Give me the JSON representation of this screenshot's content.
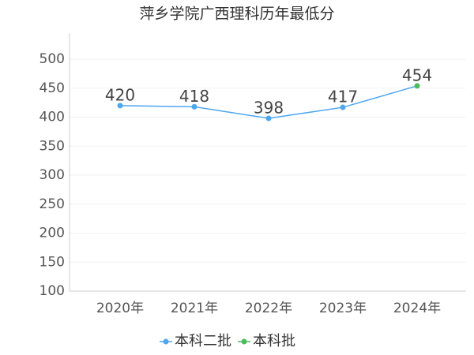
{
  "chart_data": {
    "type": "line",
    "title": "萍乡学院广西理科历年最低分",
    "categories": [
      "2020年",
      "2021年",
      "2022年",
      "2023年",
      "2024年"
    ],
    "series": [
      {
        "name": "本科二批",
        "color": "#4da6f0",
        "values": [
          420,
          418,
          398,
          417,
          null
        ]
      },
      {
        "name": "本科批",
        "color": "#4cbb5a",
        "values": [
          null,
          null,
          null,
          null,
          454
        ]
      }
    ],
    "ylim": [
      100,
      545
    ],
    "yticks": [
      100,
      150,
      200,
      250,
      300,
      350,
      400,
      450,
      500
    ],
    "grid": true
  }
}
